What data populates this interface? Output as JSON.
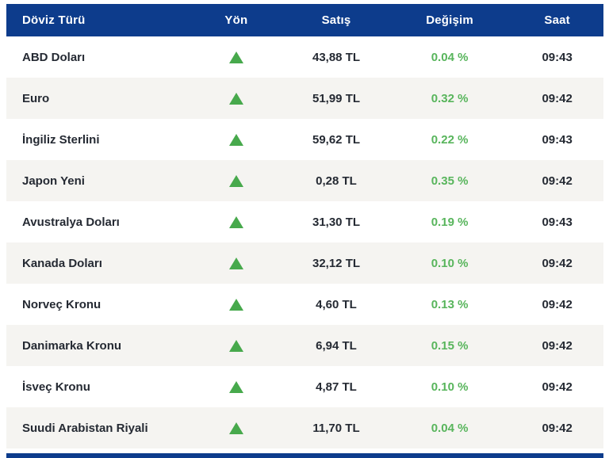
{
  "header": {
    "columns": {
      "currency": "Döviz Türü",
      "direction": "Yön",
      "price": "Satış",
      "change": "Değişim",
      "time": "Saat"
    }
  },
  "rows": [
    {
      "currency": "ABD Doları",
      "direction": "up",
      "price": "43,88 TL",
      "change": "0.04 %",
      "time": "09:43"
    },
    {
      "currency": "Euro",
      "direction": "up",
      "price": "51,99 TL",
      "change": "0.32 %",
      "time": "09:42"
    },
    {
      "currency": "İngiliz Sterlini",
      "direction": "up",
      "price": "59,62 TL",
      "change": "0.22 %",
      "time": "09:43"
    },
    {
      "currency": "Japon Yeni",
      "direction": "up",
      "price": "0,28 TL",
      "change": "0.35 %",
      "time": "09:42"
    },
    {
      "currency": "Avustralya Doları",
      "direction": "up",
      "price": "31,30 TL",
      "change": "0.19 %",
      "time": "09:43"
    },
    {
      "currency": "Kanada Doları",
      "direction": "up",
      "price": "32,12 TL",
      "change": "0.10 %",
      "time": "09:42"
    },
    {
      "currency": "Norveç Kronu",
      "direction": "up",
      "price": "4,60 TL",
      "change": "0.13 %",
      "time": "09:42"
    },
    {
      "currency": "Danimarka Kronu",
      "direction": "up",
      "price": "6,94 TL",
      "change": "0.15 %",
      "time": "09:42"
    },
    {
      "currency": "İsveç Kronu",
      "direction": "up",
      "price": "4,87 TL",
      "change": "0.10 %",
      "time": "09:42"
    },
    {
      "currency": "Suudi Arabistan Riyali",
      "direction": "up",
      "price": "11,70 TL",
      "change": "0.04 %",
      "time": "09:42"
    }
  ],
  "colors": {
    "header_bg": "#0d3c8c",
    "row_alt_bg": "#f5f4f1",
    "up_green": "#47a94c",
    "change_green": "#58b55c",
    "text_dark": "#252a33"
  }
}
